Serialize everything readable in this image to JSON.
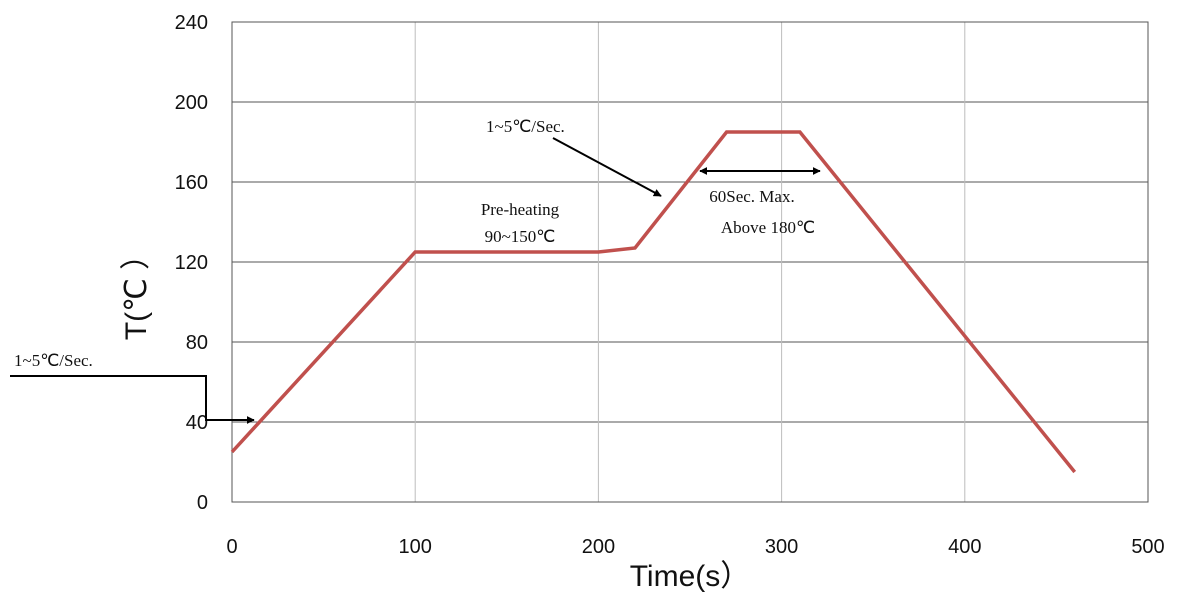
{
  "chart_data": {
    "type": "line",
    "title": "",
    "xlabel": "Time(s）",
    "ylabel": "T(℃ ）",
    "xlim": [
      0,
      500
    ],
    "ylim": [
      0,
      240
    ],
    "x_ticks": [
      "0",
      "100",
      "200",
      "300",
      "400",
      "500"
    ],
    "y_ticks": [
      "0",
      "40",
      "80",
      "120",
      "160",
      "200",
      "240"
    ],
    "grid": true,
    "series": [
      {
        "color": "#c0504d",
        "x": [
          0,
          100,
          200,
          220,
          270,
          310,
          460
        ],
        "y": [
          25,
          125,
          125,
          127,
          185,
          185,
          15
        ]
      }
    ],
    "annotations": {
      "ramp_left": "1~5℃/Sec.",
      "ramp_up": "1~5℃/Sec.",
      "preheat_line1": "Pre-heating",
      "preheat_line2": "90~150℃",
      "reflow_line1": "60Sec. Max.",
      "reflow_line2": "Above 180℃"
    }
  }
}
